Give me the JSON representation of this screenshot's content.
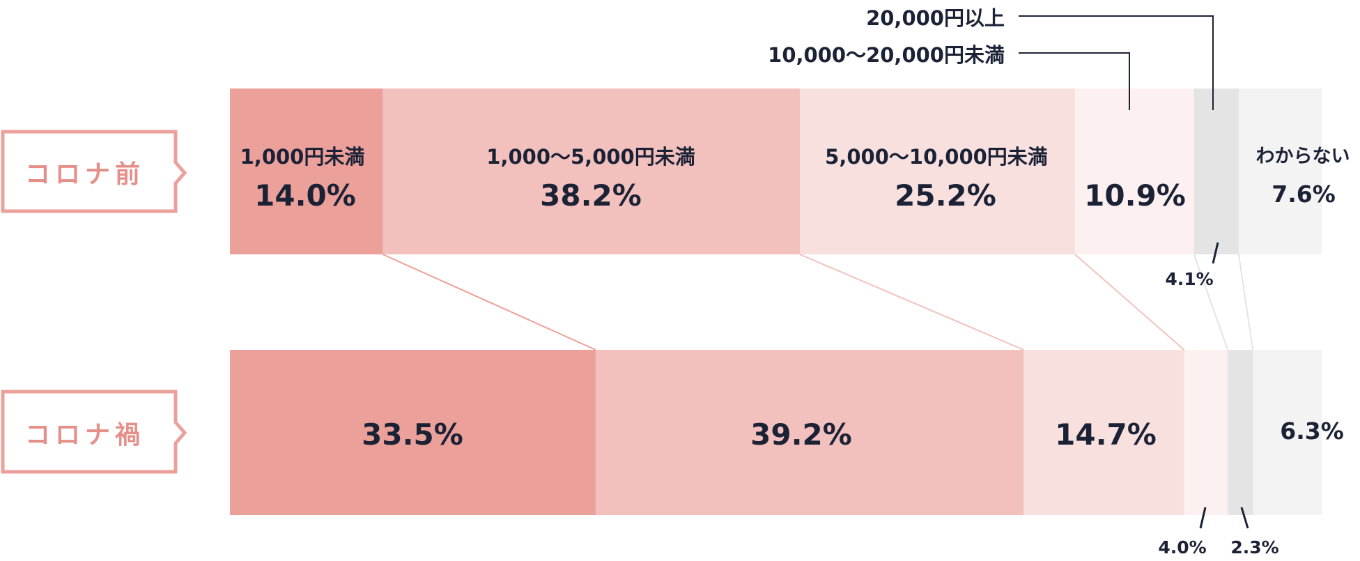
{
  "chart_data": {
    "type": "bar",
    "orientation": "horizontal-stacked-100",
    "rows": [
      {
        "name": "コロナ前",
        "values": [
          14.0,
          38.2,
          25.2,
          10.9,
          4.1,
          7.6
        ]
      },
      {
        "name": "コロナ禍",
        "values": [
          33.5,
          39.2,
          14.7,
          4.0,
          2.3,
          6.3
        ]
      }
    ],
    "categories": [
      "1,000円未満",
      "1,000〜5,000円未満",
      "5,000〜10,000円未満",
      "10,000〜20,000円未満",
      "20,000円以上",
      "わからない"
    ],
    "value_labels": {
      "before": [
        "14.0%",
        "38.2%",
        "25.2%",
        "10.9%",
        "4.1%",
        "7.6%"
      ],
      "during": [
        "33.5%",
        "39.2%",
        "14.7%",
        "4.0%",
        "2.3%",
        "6.3%"
      ]
    },
    "colors": [
      "#eca09a",
      "#f3c1bd",
      "#f8e0df",
      "#fcf1f0",
      "#e4e4e4",
      "#f3f3f3"
    ],
    "label_color": "#1c2236",
    "row_label_color": "#e58f8a"
  }
}
